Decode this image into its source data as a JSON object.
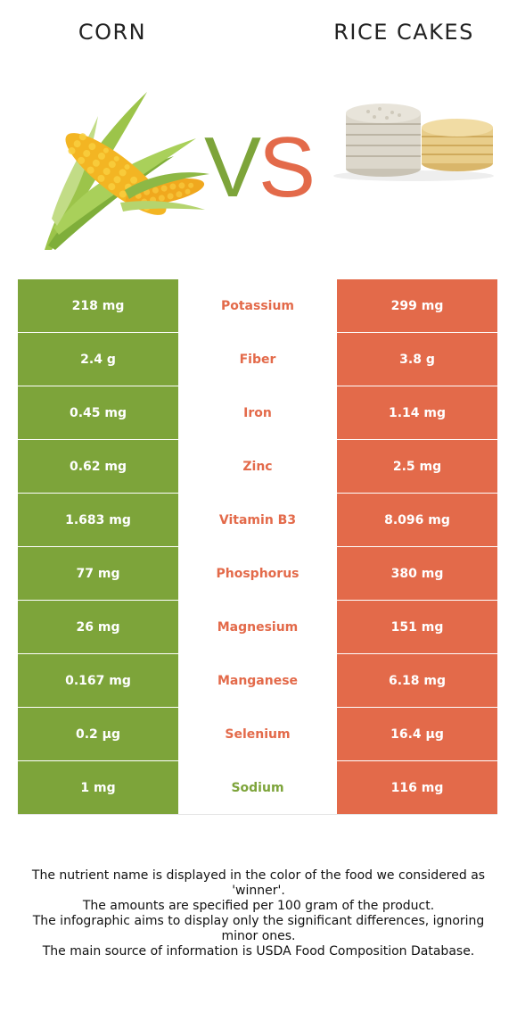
{
  "header": {
    "left_title": "CORN",
    "right_title": "RICE CAKES",
    "vs_v": "V",
    "vs_s": "S"
  },
  "colors": {
    "corn": "#7da43a",
    "rice_cakes": "#e36a4a"
  },
  "icons": {
    "left": "corn-cob-image",
    "right": "rice-cakes-stack-image"
  },
  "rows": [
    {
      "left": "218 mg",
      "nutrient": "Potassium",
      "right": "299 mg",
      "winner": "rice_cakes"
    },
    {
      "left": "2.4 g",
      "nutrient": "Fiber",
      "right": "3.8 g",
      "winner": "rice_cakes"
    },
    {
      "left": "0.45 mg",
      "nutrient": "Iron",
      "right": "1.14 mg",
      "winner": "rice_cakes"
    },
    {
      "left": "0.62 mg",
      "nutrient": "Zinc",
      "right": "2.5 mg",
      "winner": "rice_cakes"
    },
    {
      "left": "1.683 mg",
      "nutrient": "Vitamin B3",
      "right": "8.096 mg",
      "winner": "rice_cakes"
    },
    {
      "left": "77 mg",
      "nutrient": "Phosphorus",
      "right": "380 mg",
      "winner": "rice_cakes"
    },
    {
      "left": "26 mg",
      "nutrient": "Magnesium",
      "right": "151 mg",
      "winner": "rice_cakes"
    },
    {
      "left": "0.167 mg",
      "nutrient": "Manganese",
      "right": "6.18 mg",
      "winner": "rice_cakes"
    },
    {
      "left": "0.2 µg",
      "nutrient": "Selenium",
      "right": "16.4 µg",
      "winner": "rice_cakes"
    },
    {
      "left": "1 mg",
      "nutrient": "Sodium",
      "right": "116 mg",
      "winner": "corn"
    }
  ],
  "footnote": [
    "The nutrient name is displayed in the color of the food we considered as 'winner'.",
    "The amounts are specified per 100 gram of the product.",
    "The infographic aims to display only the significant differences, ignoring minor ones.",
    "The main source of information is USDA Food Composition Database."
  ]
}
